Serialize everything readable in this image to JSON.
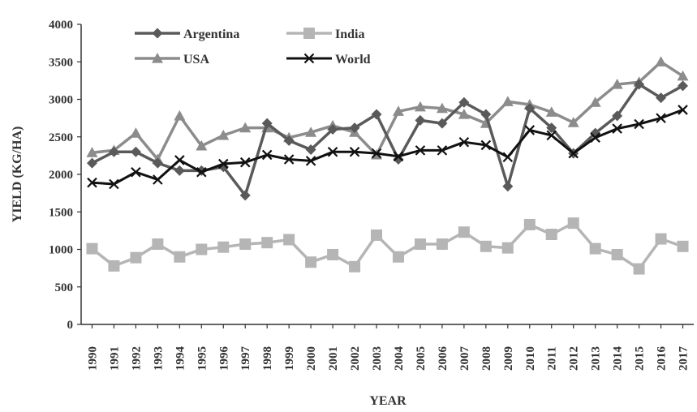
{
  "chart_data": {
    "type": "line",
    "xlabel": "YEAR",
    "ylabel": "YIELD (KG/HA)",
    "ylim": [
      0,
      4000
    ],
    "yticks": [
      "0",
      "500",
      "1000",
      "1500",
      "2000",
      "2500",
      "3000",
      "3500",
      "4000"
    ],
    "x": [
      "1990",
      "1991",
      "1992",
      "1993",
      "1994",
      "1995",
      "1996",
      "1997",
      "1998",
      "1999",
      "2000",
      "2001",
      "2002",
      "2003",
      "2004",
      "2005",
      "2006",
      "2007",
      "2008",
      "2009",
      "2010",
      "2011",
      "2012",
      "2013",
      "2014",
      "2015",
      "2016",
      "2017"
    ],
    "grid": false,
    "legend_position": "top-left",
    "series": [
      {
        "name": "Argentina",
        "color": "#5a5a5a",
        "marker": "diamond",
        "values": [
          2150,
          2300,
          2300,
          2150,
          2050,
          2050,
          2100,
          1720,
          2680,
          2450,
          2330,
          2600,
          2620,
          2800,
          2200,
          2720,
          2680,
          2960,
          2800,
          1840,
          2880,
          2620,
          2280,
          2550,
          2780,
          3200,
          3020,
          3180
        ]
      },
      {
        "name": "India",
        "color": "#b5b5b5",
        "marker": "square",
        "values": [
          1010,
          780,
          890,
          1070,
          900,
          1000,
          1030,
          1070,
          1090,
          1130,
          830,
          930,
          770,
          1190,
          900,
          1070,
          1070,
          1230,
          1040,
          1020,
          1330,
          1200,
          1350,
          1010,
          930,
          740,
          1140,
          1040
        ]
      },
      {
        "name": "USA",
        "color": "#8c8c8c",
        "marker": "triangle",
        "values": [
          2290,
          2320,
          2550,
          2200,
          2780,
          2380,
          2520,
          2620,
          2620,
          2490,
          2560,
          2650,
          2560,
          2260,
          2840,
          2900,
          2880,
          2800,
          2680,
          2970,
          2930,
          2830,
          2690,
          2960,
          3200,
          3230,
          3500,
          3310
        ]
      },
      {
        "name": "World",
        "color": "#111111",
        "marker": "x",
        "values": [
          1890,
          1870,
          2030,
          1930,
          2190,
          2030,
          2140,
          2160,
          2260,
          2200,
          2180,
          2300,
          2300,
          2280,
          2240,
          2320,
          2320,
          2430,
          2390,
          2230,
          2590,
          2520,
          2280,
          2490,
          2610,
          2670,
          2750,
          2860
        ]
      }
    ]
  }
}
